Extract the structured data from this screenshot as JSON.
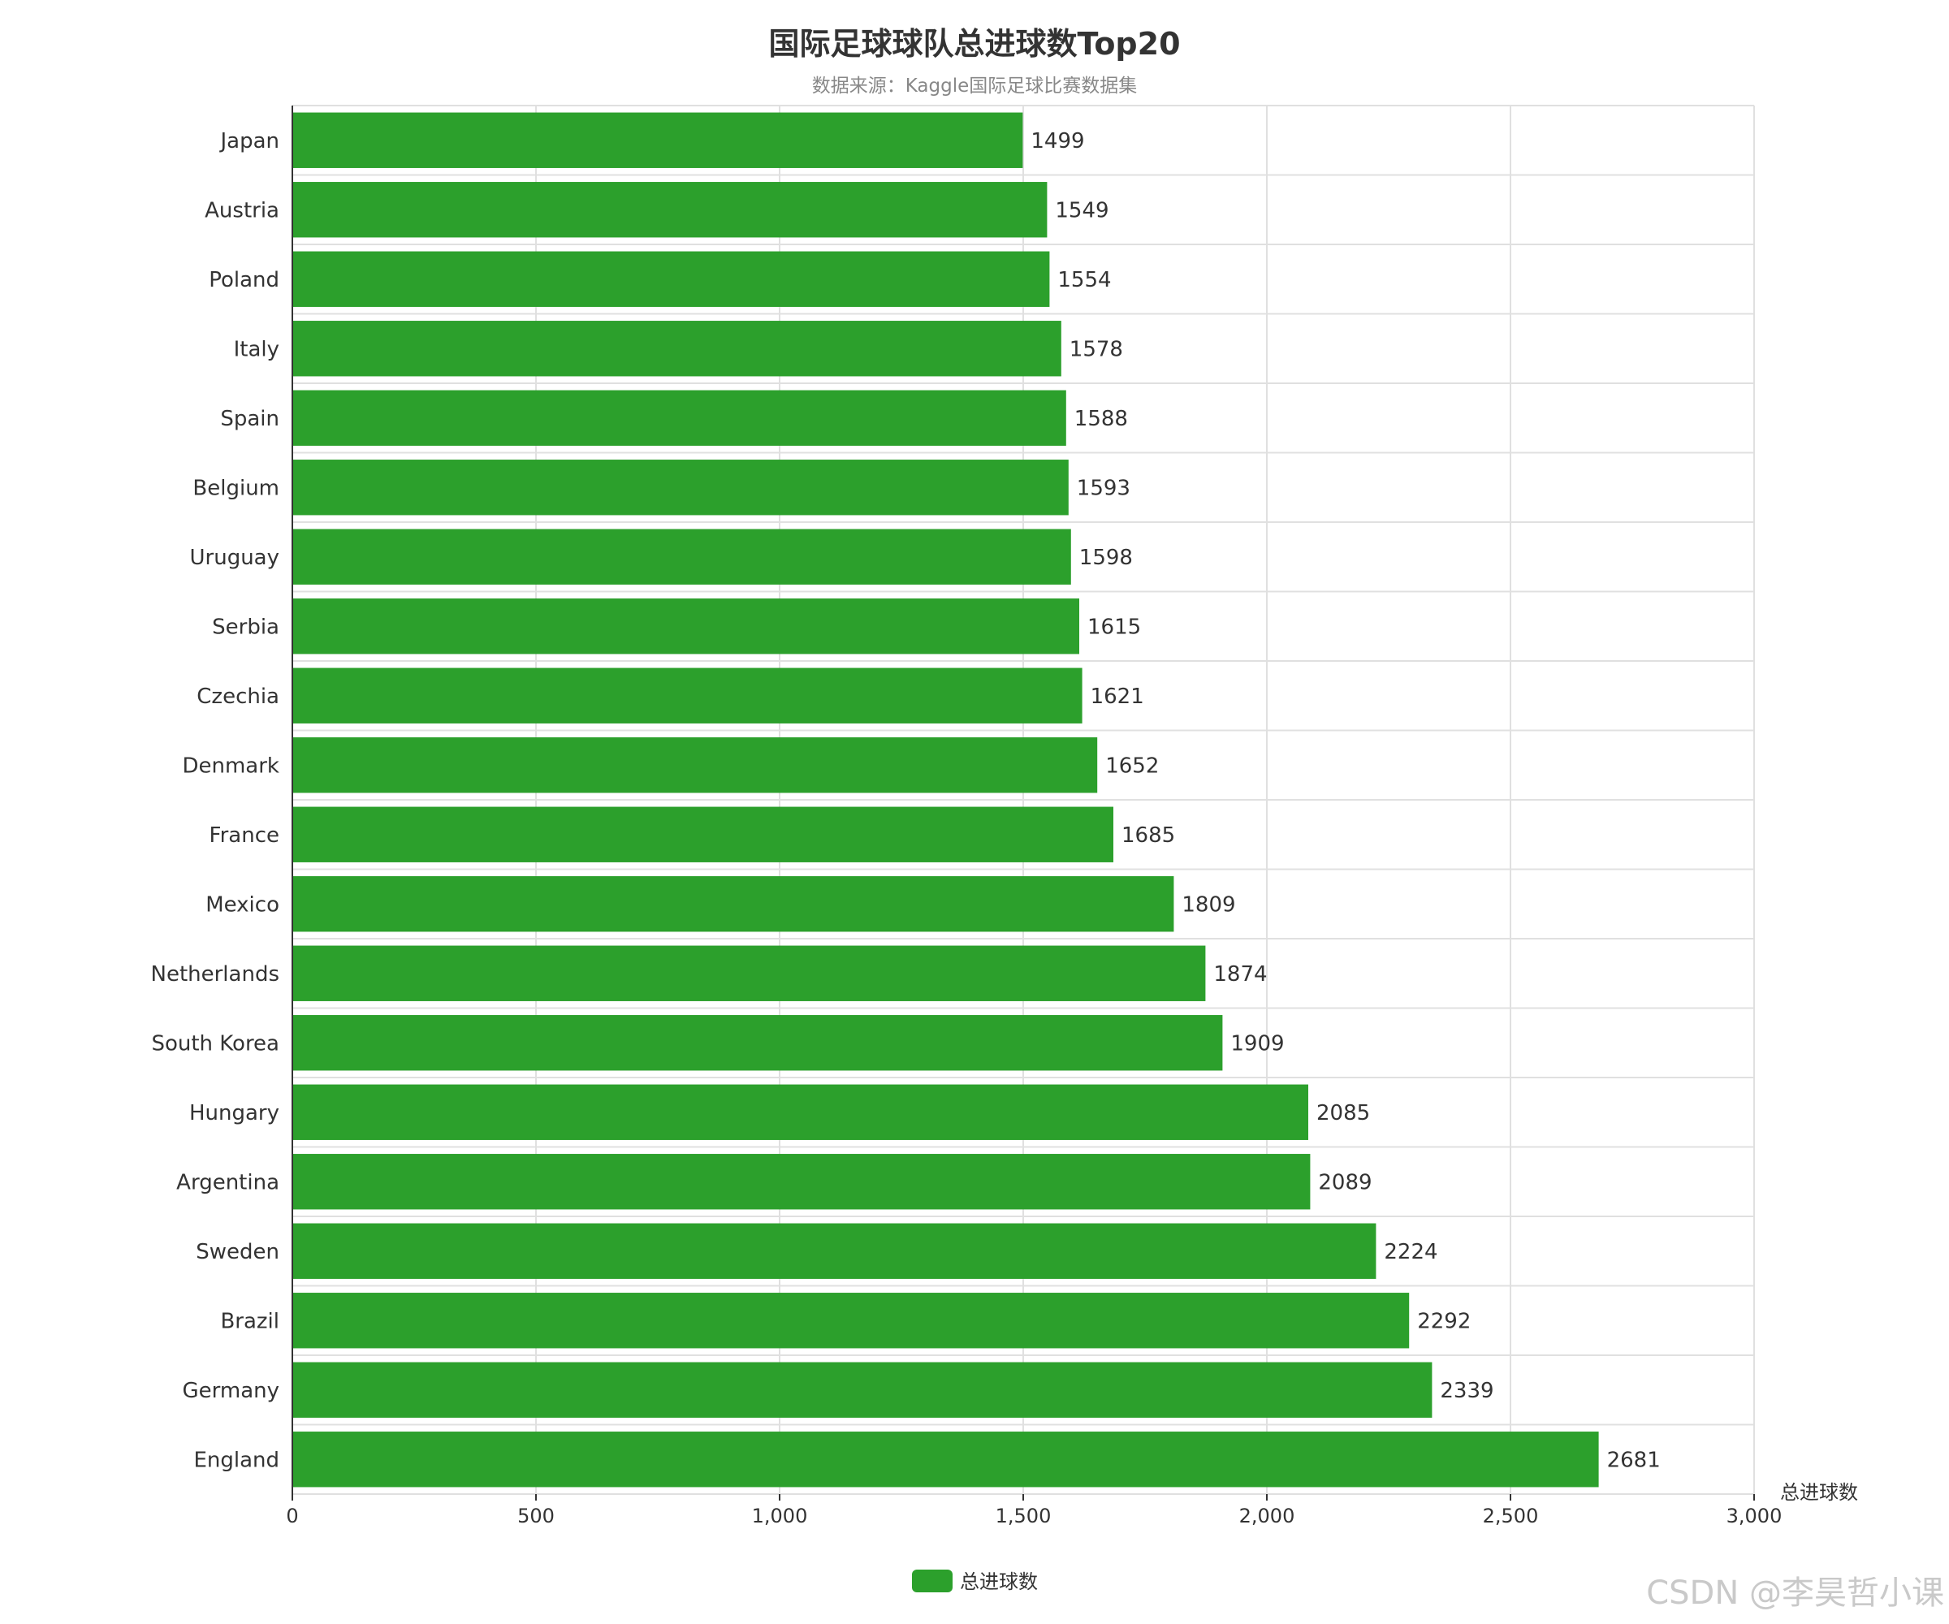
{
  "chart_data": {
    "type": "bar",
    "orientation": "horizontal",
    "title": "国际足球球队总进球数Top20",
    "subtitle": "数据来源：Kaggle国际足球比赛数据集",
    "xlabel": "总进球数",
    "ylabel": "",
    "xlim": [
      0,
      3000
    ],
    "x_ticks": [
      0,
      500,
      1000,
      1500,
      2000,
      2500,
      3000
    ],
    "x_tick_labels": [
      "0",
      "500",
      "1,000",
      "1,500",
      "2,000",
      "2,500",
      "3,000"
    ],
    "grid": true,
    "legend_position": "bottom-center",
    "series": [
      {
        "name": "总进球数",
        "color": "#2ca02c",
        "values": [
          1499,
          1549,
          1554,
          1578,
          1588,
          1593,
          1598,
          1615,
          1621,
          1652,
          1685,
          1809,
          1874,
          1909,
          2085,
          2089,
          2224,
          2292,
          2339,
          2681
        ]
      }
    ],
    "categories": [
      "Japan",
      "Austria",
      "Poland",
      "Italy",
      "Spain",
      "Belgium",
      "Uruguay",
      "Serbia",
      "Czechia",
      "Denmark",
      "France",
      "Mexico",
      "Netherlands",
      "South Korea",
      "Hungary",
      "Argentina",
      "Sweden",
      "Brazil",
      "Germany",
      "England"
    ]
  },
  "watermark": "CSDN @李昊哲小课",
  "colors": {
    "bar": "#2ca02c",
    "grid": "#e0e0e0",
    "axis": "#333333"
  }
}
